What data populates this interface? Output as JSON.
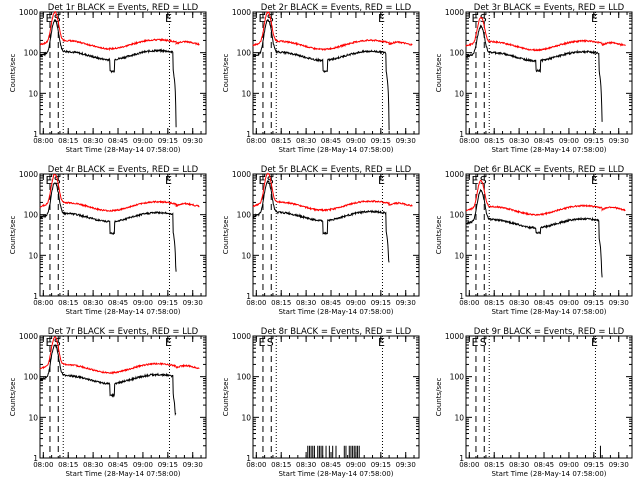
{
  "chart_data": {
    "type": "line",
    "ylabel": "Counts/sec",
    "xlabel": "Start Time (28-May-14 07:58:00)",
    "y_scale": "log",
    "ylim": [
      1,
      1000
    ],
    "y_ticks": [
      1,
      10,
      100,
      1000
    ],
    "y_tick_labels": [
      "1",
      "10",
      "100",
      "1000"
    ],
    "xlim": [
      "07:58:00",
      "09:38:00"
    ],
    "x_ticks": [
      "08:00",
      "08:15",
      "08:30",
      "08:45",
      "09:00",
      "09:15",
      "09:30"
    ],
    "grid": false,
    "legend": "title",
    "markers": {
      "lines": [
        {
          "label": "E",
          "time": "08:04",
          "style": "dashed"
        },
        {
          "label": "S",
          "time": "08:09",
          "style": "dashed"
        },
        {
          "label": "",
          "time": "08:12",
          "style": "dotted"
        },
        {
          "label": "E",
          "time": "09:16",
          "style": "dotted"
        }
      ]
    },
    "series_colors": {
      "events": "#000000",
      "lld": "#ff0000"
    },
    "panels": [
      {
        "title": "Det 1r BLACK = Events, RED = LLD",
        "kind": "full",
        "events_peak": 600,
        "lld_peak": 950,
        "events_base": 85,
        "lld_base": 150,
        "dip": [
          35,
          37
        ],
        "end_drop": 1.5
      },
      {
        "title": "Det 2r BLACK = Events, RED = LLD",
        "kind": "full",
        "events_peak": 620,
        "lld_peak": 950,
        "events_base": 82,
        "lld_base": 145,
        "dip": [
          35,
          37
        ],
        "end_drop": 1.3
      },
      {
        "title": "Det 3r BLACK = Events, RED = LLD",
        "kind": "full",
        "events_peak": 420,
        "lld_peak": 700,
        "events_base": 80,
        "lld_base": 140,
        "dip": [
          36,
          38
        ],
        "end_drop": 2.0
      },
      {
        "title": "Det 4r BLACK = Events, RED = LLD",
        "kind": "full",
        "events_peak": 600,
        "lld_peak": 950,
        "events_base": 85,
        "lld_base": 150,
        "dip": [
          35,
          37
        ],
        "end_drop": 4.0
      },
      {
        "title": "Det 5r BLACK = Events, RED = LLD",
        "kind": "full",
        "events_peak": 650,
        "lld_peak": 1000,
        "events_base": 90,
        "lld_base": 155,
        "dip": [
          35,
          37
        ],
        "end_drop": 7.0
      },
      {
        "title": "Det 6r BLACK = Events, RED = LLD",
        "kind": "full",
        "events_peak": 380,
        "lld_peak": 650,
        "events_base": 60,
        "lld_base": 120,
        "dip": [
          36,
          38
        ],
        "end_drop": 3.0
      },
      {
        "title": "Det 7r BLACK = Events, RED = LLD",
        "kind": "full",
        "events_peak": 580,
        "lld_peak": 900,
        "events_base": 85,
        "lld_base": 150,
        "dip": [
          35,
          37
        ],
        "end_drop": 12.0
      },
      {
        "title": "Det 8r BLACK = Events, RED = LLD",
        "kind": "sparse",
        "spike_times_min": [
          31,
          32,
          33,
          34,
          35,
          37,
          38,
          39,
          40,
          42,
          44,
          46,
          48,
          53,
          54,
          56,
          57,
          58,
          59,
          60,
          61,
          62
        ],
        "spike_value": 2
      },
      {
        "title": "Det 9r BLACK = Events, RED = LLD",
        "kind": "sparse",
        "spike_times_min": [
          79
        ],
        "spike_value": 2
      }
    ]
  }
}
